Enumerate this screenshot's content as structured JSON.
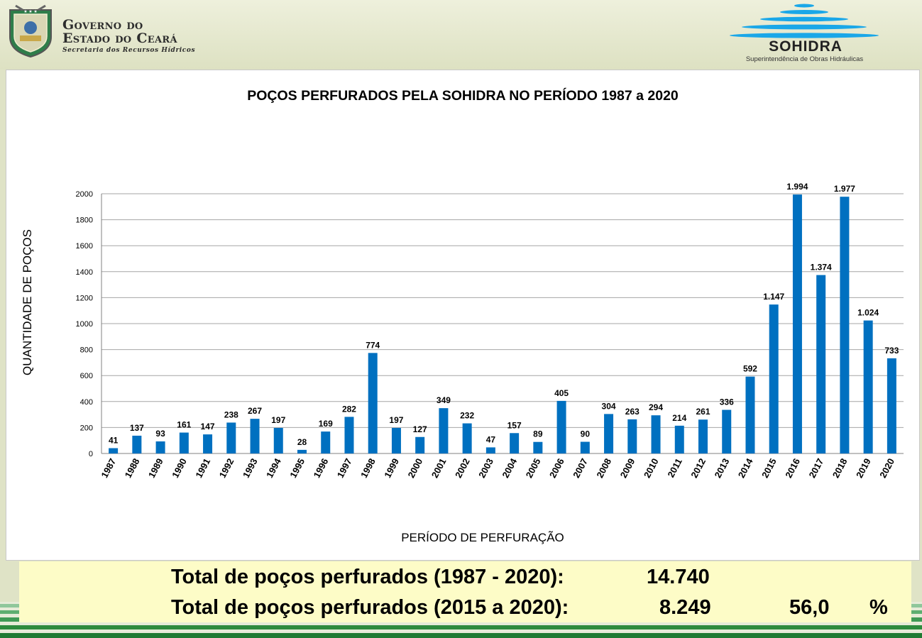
{
  "header": {
    "gov_line1": "Governo do",
    "gov_line2": "Estado do Ceará",
    "gov_line3": "Secretaria dos Recursos Hídricos",
    "sohidra_name": "SOHIDRA",
    "sohidra_subtitle": "Superintendência de Obras Hidráulicas"
  },
  "colors": {
    "bar": "#0070c0",
    "gridline": "#a6a6a6",
    "totals_background": "#fdfcc7",
    "stripe_green": "#2e8b3e"
  },
  "chart_data": {
    "type": "bar",
    "title": "POÇOS PERFURADOS PELA SOHIDRA NO PERÍODO  1987 a 2020",
    "xlabel": "PERÍODO DE PERFURAÇÃO",
    "ylabel": "QUANTIDADE DE POÇOS",
    "ylim": [
      0,
      2000
    ],
    "yticks": [
      "0",
      "200",
      "400",
      "600",
      "800",
      "1000",
      "1200",
      "1400",
      "1600",
      "1800",
      "2000"
    ],
    "grid": true,
    "categories": [
      "1987",
      "1988",
      "1989",
      "1990",
      "1991",
      "1992",
      "1993",
      "1994",
      "1995",
      "1996",
      "1997",
      "1998",
      "1999",
      "2000",
      "2001",
      "2002",
      "2003",
      "2004",
      "2005",
      "2006",
      "2007",
      "2008",
      "2009",
      "2010",
      "2011",
      "2012",
      "2013",
      "2014",
      "2015",
      "2016",
      "2017",
      "2018",
      "2019",
      "2020"
    ],
    "values": [
      41,
      137,
      93,
      161,
      147,
      238,
      267,
      197,
      28,
      169,
      282,
      774,
      197,
      127,
      349,
      232,
      47,
      157,
      89,
      405,
      90,
      304,
      263,
      294,
      214,
      261,
      336,
      592,
      1147,
      1994,
      1374,
      1977,
      1024,
      733
    ],
    "data_labels": [
      "41",
      "137",
      "93",
      "161",
      "147",
      "238",
      "267",
      "197",
      "28",
      "169",
      "282",
      "774",
      "197",
      "127",
      "349",
      "232",
      "47",
      "157",
      "89",
      "405",
      "90",
      "304",
      "263",
      "294",
      "214",
      "261",
      "336",
      "592",
      "1.147",
      "1.994",
      "1.374",
      "1.977",
      "1.024",
      "733"
    ]
  },
  "totals": {
    "row1_label": "Total de poços perfurados  (1987 - 2020):",
    "row1_value": "14.740",
    "row2_label": "Total de poços perfurados  (2015 a 2020):",
    "row2_value": "8.249",
    "row2_percent": "56,0",
    "row2_percent_symbol": "%"
  }
}
